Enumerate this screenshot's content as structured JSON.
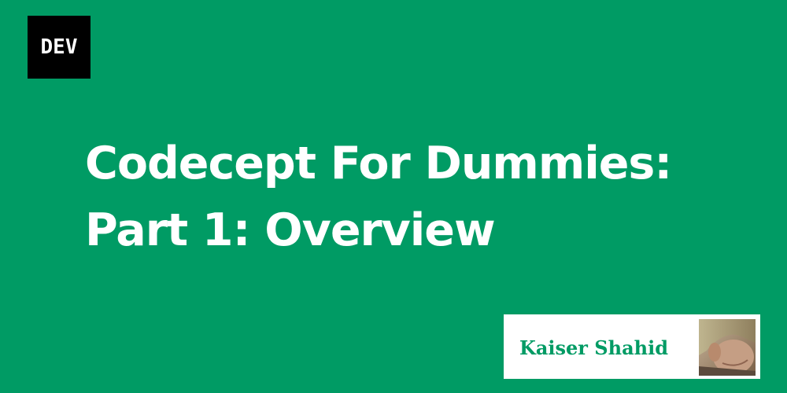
{
  "brand": {
    "logo_text": "DEV",
    "logo_bg": "#000000",
    "background": "#009b64"
  },
  "article": {
    "title_line1": "Codecept For Dummies:",
    "title_line2": "Part 1: Overview"
  },
  "author": {
    "name": "Kaiser Shahid",
    "avatar_icon": "author-photo"
  }
}
